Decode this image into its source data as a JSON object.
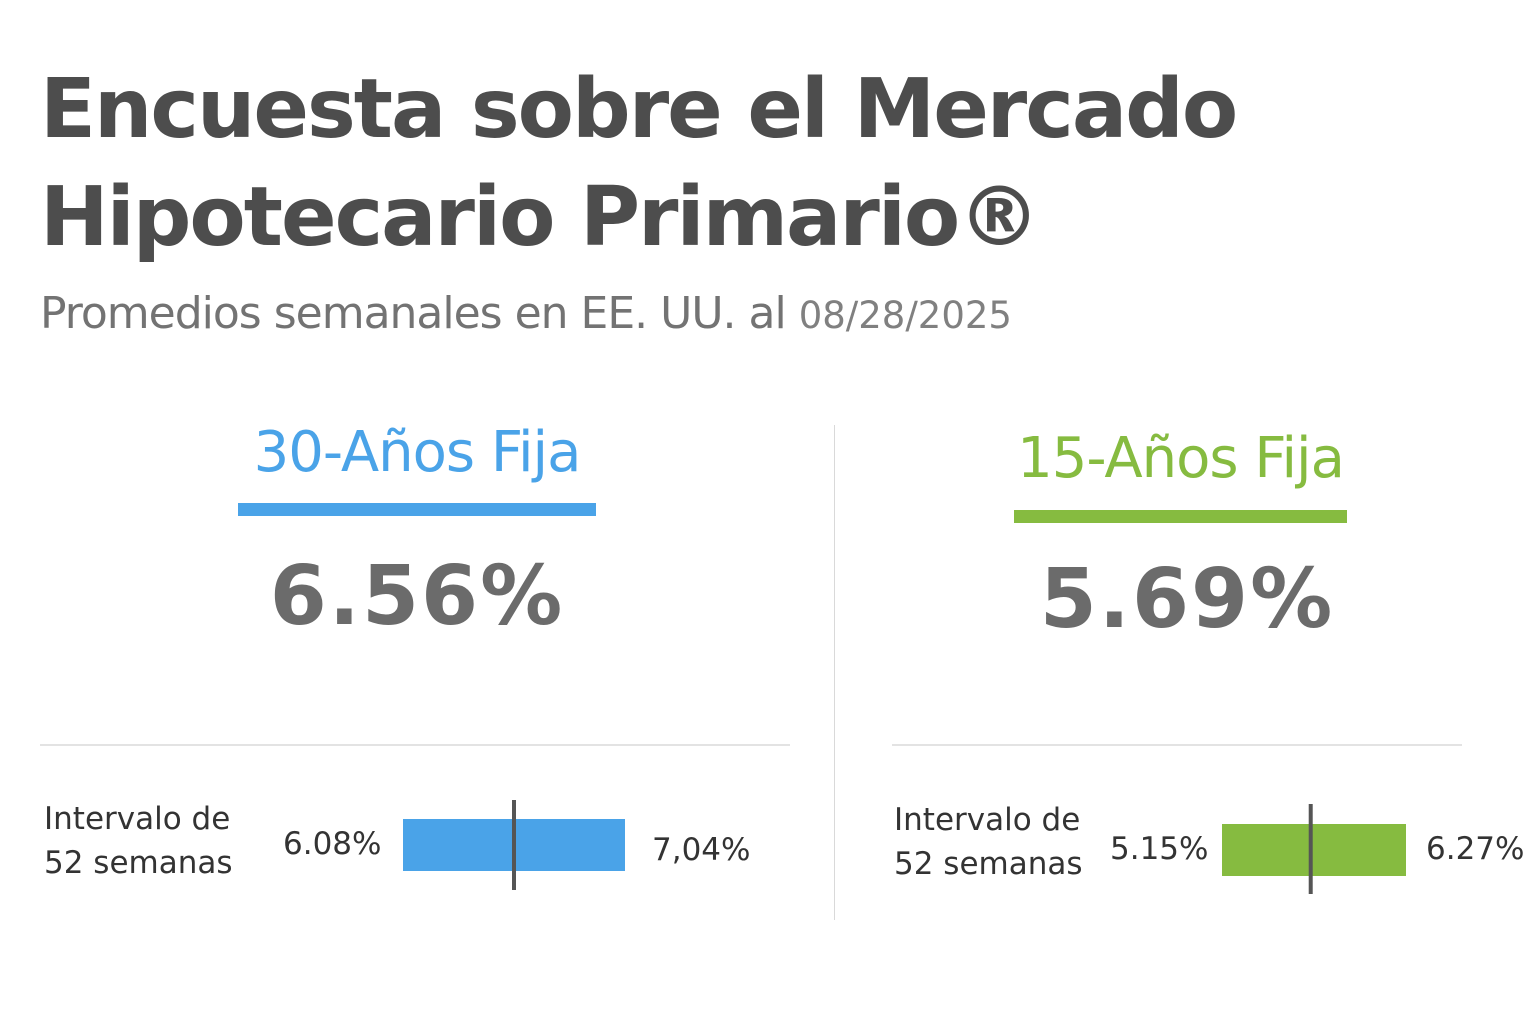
{
  "header": {
    "title_line1": "Encuesta sobre el Mercado",
    "title_line2": "Hipotecario Primario®",
    "subtitle": "Promedios semanales en EE. UU. al",
    "date": "08/28/2025"
  },
  "chart_data": [
    {
      "type": "bar",
      "title": "30-Años Fija",
      "current_rate": "6.56%",
      "current_value": 6.56,
      "range_label_line1": "Intervalo de",
      "range_label_line2": "52 semanas",
      "range_low_label": "6.08%",
      "range_high_label": "7,04%",
      "range_low": 6.08,
      "range_high": 7.04,
      "color": "#4aa3e8"
    },
    {
      "type": "bar",
      "title": "15-Años Fija",
      "current_rate": "5.69%",
      "current_value": 5.69,
      "range_label_line1": "Intervalo de",
      "range_label_line2": "52 semanas",
      "range_low_label": "5.15%",
      "range_high_label": "6.27%",
      "range_low": 5.15,
      "range_high": 6.27,
      "color": "#86bb40"
    }
  ],
  "marker_color": "#555555"
}
